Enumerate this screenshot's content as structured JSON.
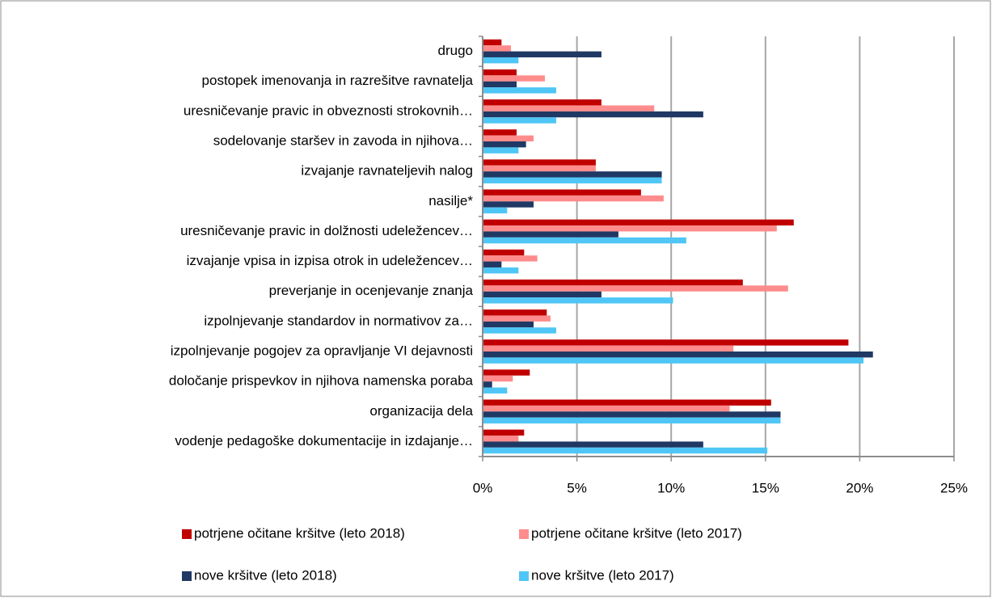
{
  "chart_data": {
    "type": "bar",
    "orientation": "horizontal",
    "categories": [
      "drugo",
      "postopek imenovanja in razrešitve ravnatelja",
      "uresničevanje pravic in obveznosti strokovnih…",
      "sodelovanje staršev in zavoda in njihova…",
      "izvajanje ravnateljevih nalog",
      "nasilje*",
      "uresničevanje pravic in dolžnosti udeležencev…",
      "izvajanje vpisa in izpisa otrok in udeležencev…",
      "preverjanje in ocenjevanje znanja",
      "izpolnjevanje standardov in normativov za…",
      "izpolnjevanje pogojev za opravljanje VI dejavnosti",
      "določanje prispevkov in njihova namenska poraba",
      "organizacija dela",
      "vodenje pedagoške dokumentacije in izdajanje…"
    ],
    "series": [
      {
        "name": "potrjene očitane kršitve (leto 2018)",
        "color": "#c00000",
        "values": [
          1.0,
          1.8,
          6.3,
          1.8,
          6.0,
          8.4,
          16.5,
          2.2,
          13.8,
          3.4,
          19.4,
          2.5,
          15.3,
          2.2
        ]
      },
      {
        "name": "potrjene očitane kršitve (leto 2017)",
        "color": "#ff8c8c",
        "values": [
          1.5,
          3.3,
          9.1,
          2.7,
          6.0,
          9.6,
          15.6,
          2.9,
          16.2,
          3.6,
          13.3,
          1.6,
          13.1,
          1.9
        ]
      },
      {
        "name": "nove kršitve (leto 2018)",
        "color": "#1f3864",
        "values": [
          6.3,
          1.8,
          11.7,
          2.3,
          9.5,
          2.7,
          7.2,
          1.0,
          6.3,
          2.7,
          20.7,
          0.5,
          15.8,
          11.7
        ]
      },
      {
        "name": "nove kršitve (leto 2017)",
        "color": "#4fc6f5",
        "values": [
          1.9,
          3.9,
          3.9,
          1.9,
          9.5,
          1.3,
          10.8,
          1.9,
          10.1,
          3.9,
          20.2,
          1.3,
          15.8,
          15.1
        ]
      }
    ],
    "xlim": [
      0,
      25
    ],
    "xticks": [
      {
        "value": 0,
        "label": "0%"
      },
      {
        "value": 5,
        "label": "5%"
      },
      {
        "value": 10,
        "label": "10%"
      },
      {
        "value": 15,
        "label": "15%"
      },
      {
        "value": 20,
        "label": "20%"
      },
      {
        "value": 25,
        "label": "25%"
      }
    ],
    "grid": true
  }
}
